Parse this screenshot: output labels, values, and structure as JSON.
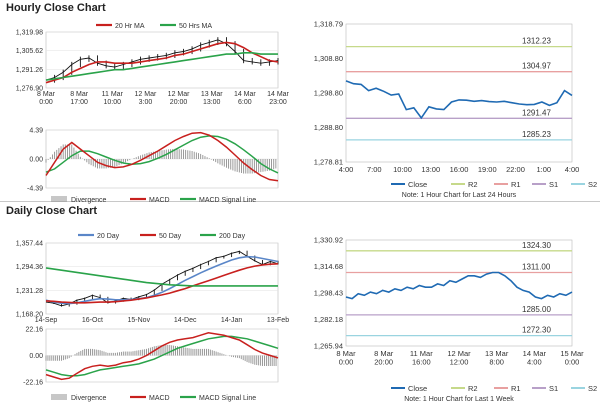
{
  "hourly": {
    "title": "Hourly Close Chart",
    "price_chart": {
      "type": "line",
      "legend": [
        "20 Hr MA",
        "50 Hrs MA"
      ],
      "y_ticks": [
        "1,319.98",
        "1,305.62",
        "1,291.26",
        "1,276.90"
      ],
      "ylim": [
        1276.9,
        1319.98
      ],
      "x_labels": [
        "8 Mar\n0:00",
        "8 Mar\n17:00",
        "11 Mar\n10:00",
        "12 Mar\n3:00",
        "12 Mar\n20:00",
        "13 Mar\n13:00",
        "14 Mar\n6:00",
        "14 Mar\n23:00"
      ],
      "series": [
        {
          "name": "Price",
          "values": [
            1283,
            1285,
            1289,
            1295,
            1299,
            1300,
            1296,
            1294,
            1293,
            1295,
            1297,
            1299,
            1300,
            1301,
            1302,
            1304,
            1305,
            1307,
            1310,
            1312,
            1314,
            1311,
            1305,
            1298,
            1297,
            1296,
            1297,
            1298
          ]
        },
        {
          "name": "20 Hr MA",
          "values": [
            1281,
            1283,
            1285,
            1289,
            1292,
            1295,
            1297,
            1297,
            1296,
            1296,
            1296,
            1297,
            1298,
            1299,
            1300,
            1302,
            1303,
            1305,
            1307,
            1309,
            1311,
            1312,
            1311,
            1308,
            1304,
            1301,
            1298,
            1297
          ]
        },
        {
          "name": "50 Hrs MA",
          "values": [
            1283,
            1284,
            1285,
            1286,
            1287,
            1288,
            1289,
            1290,
            1291,
            1291,
            1292,
            1293,
            1294,
            1295,
            1296,
            1297,
            1298,
            1299,
            1300,
            1301,
            1302,
            1303,
            1303,
            1304,
            1304,
            1303,
            1303,
            1303
          ]
        }
      ]
    },
    "macd_chart": {
      "type": "line",
      "y_ticks": [
        "4.39",
        "0.00",
        "-4.39"
      ],
      "ylim": [
        -4.39,
        4.39
      ],
      "legend": [
        "Divergence",
        "MACD",
        "MACD Signal Line"
      ],
      "macd": [
        -2.5,
        -0.5,
        1.5,
        2.5,
        1.5,
        0.5,
        -0.5,
        -1,
        -1.3,
        -1.2,
        -0.8,
        -0.2,
        0.5,
        1.2,
        2,
        2.8,
        3.4,
        3.9,
        4,
        3.6,
        2.8,
        1.8,
        0.6,
        -0.6,
        -1.6,
        -2.5,
        -3.1,
        -3.3
      ],
      "signal": [
        -2,
        -1.5,
        -0.5,
        0.5,
        1.2,
        1.2,
        0.8,
        0.3,
        -0.2,
        -0.6,
        -0.8,
        -0.7,
        -0.4,
        0.1,
        0.7,
        1.4,
        2.1,
        2.8,
        3.3,
        3.5,
        3.4,
        3,
        2.3,
        1.4,
        0.4,
        -0.7,
        -1.5,
        -2.1
      ]
    },
    "close_chart": {
      "type": "line",
      "y_ticks": [
        "1,318.79",
        "1,308.80",
        "1,298.80",
        "1,288.80",
        "1,278.81"
      ],
      "ylim": [
        1278.81,
        1318.79
      ],
      "x_labels": [
        "4:00",
        "7:00",
        "10:00",
        "13:00",
        "16:00",
        "19:00",
        "22:00",
        "1:00",
        "4:00"
      ],
      "close": [
        1302.3,
        1301.5,
        1301.3,
        1299.5,
        1300.2,
        1299.3,
        1298.2,
        1298.5,
        1294,
        1294.5,
        1291.6,
        1294.8,
        1294.2,
        1294,
        1296.2,
        1296.8,
        1296.7,
        1296.4,
        1296.6,
        1296.3,
        1296.2,
        1296.4,
        1296,
        1295.6,
        1295.4,
        1295.5,
        1296.2,
        1295.2,
        1296,
        1299.5,
        1298.1
      ],
      "levels": [
        {
          "name": "R2",
          "value": 1312.23,
          "label": "1312.23",
          "color": "#c6d98a"
        },
        {
          "name": "R1",
          "value": 1304.97,
          "label": "1304.97",
          "color": "#e8a0a0"
        },
        {
          "name": "S1",
          "value": 1291.47,
          "label": "1291.47",
          "color": "#b8a0c8"
        },
        {
          "name": "S2",
          "value": 1285.23,
          "label": "1285.23",
          "color": "#9ad4e0"
        }
      ],
      "legend": [
        "Close",
        "R2",
        "R1",
        "S1",
        "S2"
      ],
      "note": "Note: 1 Hour Chart for Last 24 Hours"
    }
  },
  "daily": {
    "title": "Daily Close Chart",
    "price_chart": {
      "type": "line",
      "legend": [
        "20 Day",
        "50 Day",
        "200 Day"
      ],
      "y_ticks": [
        "1,357.44",
        "1,294.36",
        "1,231.28",
        "1,168.20"
      ],
      "ylim": [
        1168.2,
        1357.44
      ],
      "x_labels": [
        "14-Sep",
        "16-Oct",
        "15-Nov",
        "14-Dec",
        "14-Jan",
        "13-Feb"
      ],
      "series": [
        {
          "name": "Price",
          "values": [
            1200,
            1197,
            1190,
            1195,
            1205,
            1210,
            1218,
            1212,
            1198,
            1203,
            1210,
            1207,
            1214,
            1220,
            1232,
            1248,
            1260,
            1272,
            1282,
            1290,
            1300,
            1308,
            1318,
            1322,
            1330,
            1335,
            1322,
            1310,
            1300,
            1308,
            1302
          ]
        },
        {
          "name": "20 Day",
          "values": [
            1205,
            1200,
            1197,
            1196,
            1198,
            1202,
            1206,
            1209,
            1208,
            1206,
            1206,
            1207,
            1209,
            1212,
            1218,
            1226,
            1236,
            1247,
            1258,
            1268,
            1278,
            1287,
            1296,
            1304,
            1312,
            1318,
            1321,
            1320,
            1316,
            1312,
            1308
          ]
        },
        {
          "name": "50 Day",
          "values": [
            1203,
            1202,
            1200,
            1199,
            1198,
            1198,
            1199,
            1200,
            1200,
            1201,
            1203,
            1205,
            1208,
            1211,
            1215,
            1219,
            1224,
            1230,
            1236,
            1243,
            1250,
            1257,
            1264,
            1271,
            1278,
            1285,
            1291,
            1296,
            1299,
            1301,
            1302
          ]
        },
        {
          "name": "200 Day",
          "values": [
            1291,
            1288,
            1285,
            1282,
            1279,
            1276,
            1273,
            1270,
            1267,
            1264,
            1261,
            1258,
            1255,
            1252,
            1250,
            1248,
            1246,
            1245,
            1244,
            1243,
            1243,
            1243,
            1243,
            1243,
            1243,
            1243,
            1243,
            1243,
            1243,
            1243,
            1243
          ]
        }
      ]
    },
    "macd_chart": {
      "type": "line",
      "y_ticks": [
        "22.16",
        "0.00",
        "-22.16"
      ],
      "ylim": [
        -22.16,
        22.16
      ],
      "legend": [
        "Divergence",
        "MACD",
        "MACD Signal Line"
      ],
      "macd": [
        -16,
        -18,
        -20,
        -19,
        -15,
        -11,
        -9,
        -8,
        -9,
        -8,
        -6,
        -5,
        -3,
        0,
        4,
        8,
        11,
        13,
        14,
        15,
        17,
        19,
        18,
        17,
        15,
        13,
        9,
        5,
        2,
        0,
        -2
      ],
      "signal": [
        -12,
        -14,
        -16,
        -17,
        -17,
        -16,
        -14,
        -12,
        -11,
        -10,
        -9,
        -8,
        -7,
        -5,
        -3,
        0,
        3,
        6,
        8,
        10,
        12,
        14,
        15,
        16,
        16,
        15,
        14,
        12,
        10,
        8,
        6
      ]
    },
    "close_chart": {
      "type": "line",
      "y_ticks": [
        "1,330.92",
        "1,314.68",
        "1,298.43",
        "1,282.18",
        "1,265.94"
      ],
      "ylim": [
        1265.94,
        1330.92
      ],
      "x_labels": [
        "8 Mar\n0:00",
        "8 Mar\n20:00",
        "11 Mar\n16:00",
        "12 Mar\n12:00",
        "13 Mar\n8:00",
        "14 Mar\n4:00",
        "15 Mar\n0:00"
      ],
      "close": [
        1296,
        1295,
        1298,
        1297,
        1299,
        1298,
        1300,
        1299,
        1301,
        1300,
        1302,
        1301,
        1303,
        1302,
        1302,
        1304,
        1303,
        1306,
        1305,
        1307,
        1309,
        1309,
        1308,
        1310,
        1311,
        1311,
        1309,
        1306,
        1302,
        1300,
        1299,
        1296,
        1295,
        1297,
        1296,
        1298,
        1297,
        1299
      ],
      "levels": [
        {
          "name": "R2",
          "value": 1324.3,
          "label": "1324.30",
          "color": "#c6d98a"
        },
        {
          "name": "R1",
          "value": 1311.0,
          "label": "1311.00",
          "color": "#e8a0a0"
        },
        {
          "name": "S1",
          "value": 1285.0,
          "label": "1285.00",
          "color": "#b8a0c8"
        },
        {
          "name": "S2",
          "value": 1272.3,
          "label": "1272.30",
          "color": "#9ad4e0"
        }
      ],
      "legend": [
        "Close",
        "R2",
        "R1",
        "S1",
        "S2"
      ],
      "note": "Note: 1 Hour Chart for Last 1 Week"
    }
  },
  "colors": {
    "price": "#111111",
    "ma20": "#c8201e",
    "ma50": "#2aa34a",
    "ma200": "#2aa34a",
    "day20": "#5a86c8",
    "macd": "#c8201e",
    "signal": "#2aa34a",
    "divergence": "#8f8f8f",
    "close": "#1f6ab3",
    "grid": "#e2e2e2"
  }
}
